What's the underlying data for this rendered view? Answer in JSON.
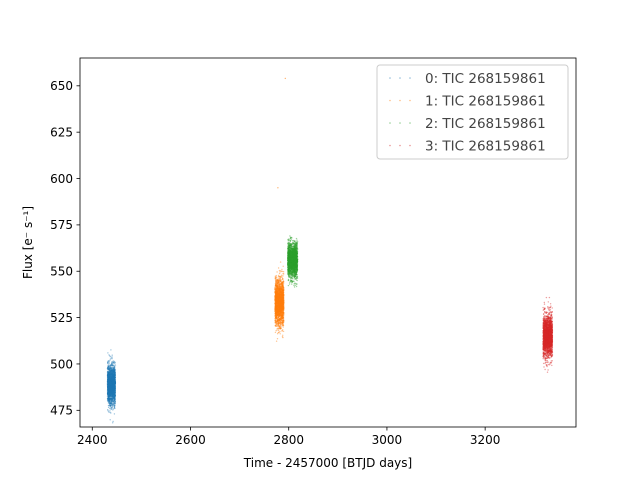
{
  "chart_data": {
    "type": "scatter",
    "xlabel": "Time - 2457000 [BTJD days]",
    "ylabel": "Flux [e⁻ s⁻¹]",
    "xlim": [
      2375,
      3385
    ],
    "ylim": [
      466,
      665
    ],
    "xticks": [
      2400,
      2600,
      2800,
      3000,
      3200
    ],
    "yticks": [
      475,
      500,
      525,
      550,
      575,
      600,
      625,
      650
    ],
    "grid": false,
    "legend_position": "top-right",
    "series": [
      {
        "name": "0: TIC 268159861",
        "color": "#1f77b4",
        "x_range": [
          2431,
          2447
        ],
        "y_center": 489,
        "y_spread": 9,
        "y_min": 463,
        "y_max": 514
      },
      {
        "name": "1: TIC 268159861",
        "color": "#ff7f0e",
        "x_range": [
          2772,
          2790
        ],
        "y_center": 533,
        "y_spread": 11,
        "y_min": 505,
        "y_max": 558
      },
      {
        "name": "2: TIC 268159861",
        "color": "#2ca02c",
        "x_range": [
          2798,
          2818
        ],
        "y_center": 556,
        "y_spread": 8,
        "y_min": 537,
        "y_max": 578
      },
      {
        "name": "3: TIC 268159861",
        "color": "#d62728",
        "x_range": [
          3318,
          3337
        ],
        "y_center": 515,
        "y_spread": 10,
        "y_min": 485,
        "y_max": 545
      }
    ],
    "outliers": [
      {
        "series": 1,
        "x": 2778,
        "y": 595
      },
      {
        "series": 1,
        "x": 2793,
        "y": 654
      }
    ]
  }
}
